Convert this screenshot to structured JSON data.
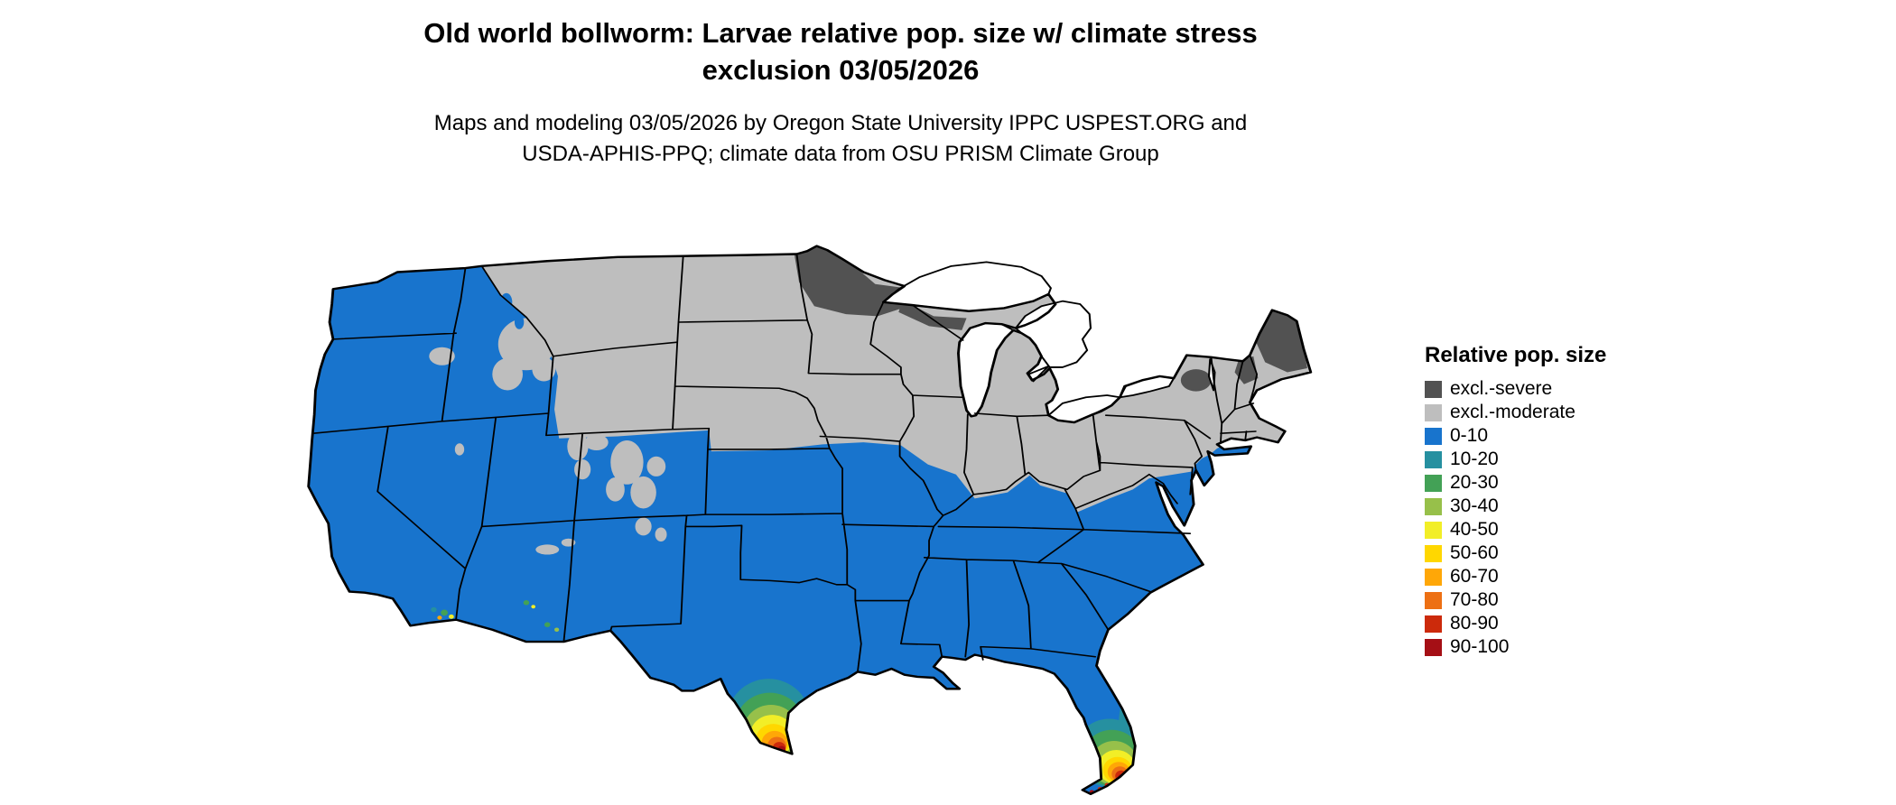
{
  "title": {
    "line1": "Old world bollworm: Larvae relative pop. size w/ climate stress",
    "line2": "exclusion 03/05/2026"
  },
  "subtitle": {
    "line1": "Maps and modeling 03/05/2026 by Oregon State University IPPC USPEST.ORG and",
    "line2": "USDA-APHIS-PPQ; climate data from OSU PRISM Climate Group"
  },
  "legend": {
    "title": "Relative pop. size",
    "items": [
      {
        "label": "excl.-severe",
        "color": "#525252"
      },
      {
        "label": "excl.-moderate",
        "color": "#BEBEBE"
      },
      {
        "label": "0-10",
        "color": "#1874CD"
      },
      {
        "label": "10-20",
        "color": "#2690A0"
      },
      {
        "label": "20-30",
        "color": "#43A156"
      },
      {
        "label": "30-40",
        "color": "#97C04A"
      },
      {
        "label": "40-50",
        "color": "#F2EE27"
      },
      {
        "label": "50-60",
        "color": "#FFD700"
      },
      {
        "label": "60-70",
        "color": "#FFA707"
      },
      {
        "label": "70-80",
        "color": "#ED7014"
      },
      {
        "label": "80-90",
        "color": "#CC2A0B"
      },
      {
        "label": "90-100",
        "color": "#A50F15"
      }
    ]
  },
  "map": {
    "region": "Contiguous United States",
    "base_value": "0-10",
    "excluded_severe_areas": [
      "northern Minnesota",
      "northwest Wisconsin / upper Michigan",
      "Adirondacks New York",
      "northern New Hampshire / Vermont",
      "Maine"
    ],
    "excluded_moderate_areas": [
      "Montana",
      "Wyoming",
      "Dakotas",
      "Nebraska",
      "Minnesota",
      "Iowa",
      "Wisconsin",
      "Michigan",
      "northern Illinois",
      "Indiana",
      "Ohio",
      "West Virginia",
      "Pennsylvania",
      "New York",
      "New England",
      "central Idaho",
      "Utah mountains",
      "Colorado Rockies"
    ],
    "hotspots": [
      "southern Texas Rio Grande Valley up to 90-100",
      "southern Florida up to 90-100",
      "small pockets in southern California and southern Arizona"
    ]
  }
}
